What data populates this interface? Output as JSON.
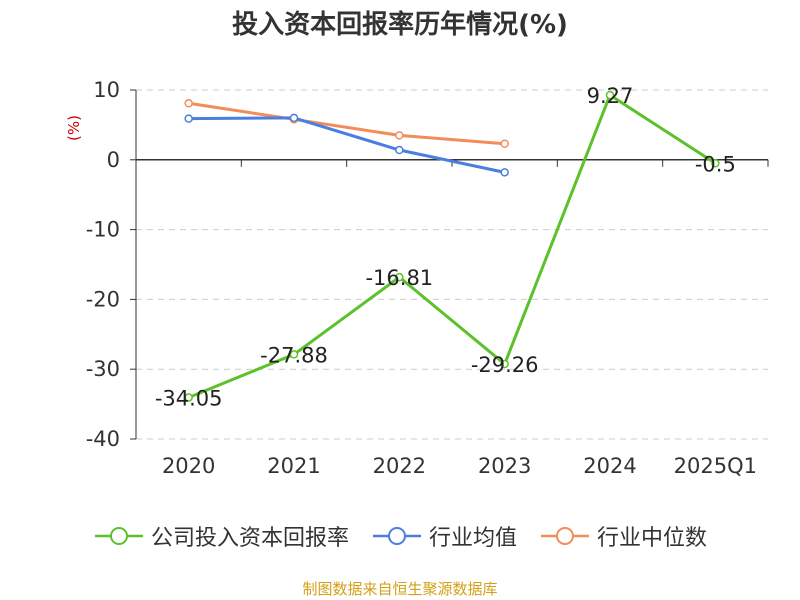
{
  "chart_data": {
    "type": "line",
    "title": "投入资本回报率历年情况(%)",
    "ylabel": "(%)",
    "xlabel": "",
    "categories": [
      "2020",
      "2021",
      "2022",
      "2023",
      "2024",
      "2025Q1"
    ],
    "ylim": [
      -40,
      10
    ],
    "yticks": [
      10,
      0,
      -10,
      -20,
      -30,
      -40
    ],
    "grid": true,
    "legend_position": "bottom",
    "series": [
      {
        "name": "公司投入资本回报率",
        "color": "#5cc12a",
        "values": [
          -34.05,
          -27.88,
          -16.81,
          -29.26,
          9.27,
          -0.5
        ],
        "labels": [
          "-34.05",
          "-27.88",
          "-16.81",
          "-29.26",
          "9.27",
          "-0.5"
        ]
      },
      {
        "name": "行业均值",
        "color": "#4a7fe0",
        "values": [
          5.9,
          6.0,
          1.4,
          -1.8,
          null,
          null
        ]
      },
      {
        "name": "行业中位数",
        "color": "#f28c58",
        "values": [
          8.1,
          5.8,
          3.5,
          2.3,
          null,
          null
        ]
      }
    ]
  },
  "source": "制图数据来自恒生聚源数据库"
}
